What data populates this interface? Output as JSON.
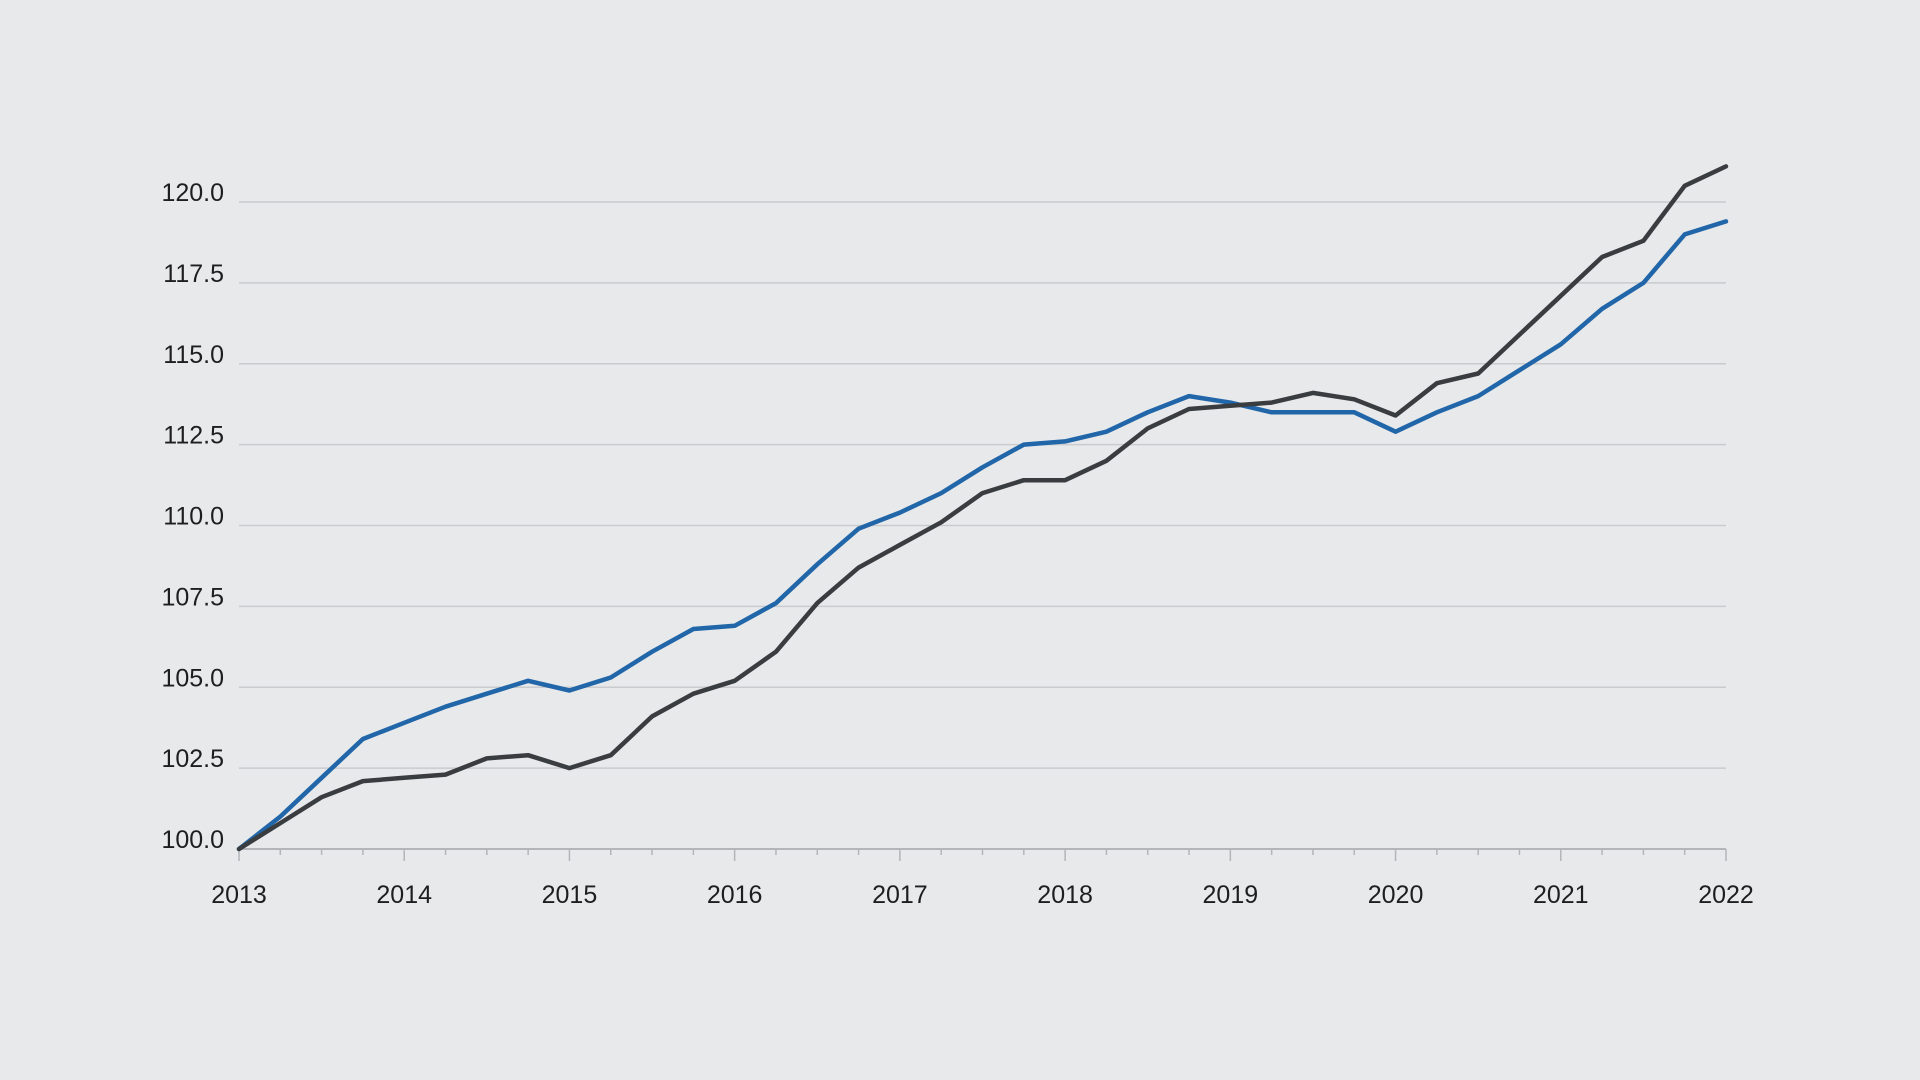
{
  "chart_data": {
    "type": "line",
    "title": "",
    "xlabel": "",
    "ylabel": "",
    "xlim": [
      2013,
      2022
    ],
    "ylim": [
      100,
      122
    ],
    "y_ticks": [
      100.0,
      102.5,
      105.0,
      107.5,
      110.0,
      112.5,
      115.0,
      117.5,
      120.0
    ],
    "y_tick_labels": [
      "100.0",
      "102.5",
      "105.0",
      "107.5",
      "110.0",
      "112.5",
      "115.0",
      "117.5",
      "120.0"
    ],
    "x_ticks": [
      2013,
      2014,
      2015,
      2016,
      2017,
      2018,
      2019,
      2020,
      2021,
      2022
    ],
    "x_tick_labels": [
      "2013",
      "2014",
      "2015",
      "2016",
      "2017",
      "2018",
      "2019",
      "2020",
      "2021",
      "2022"
    ],
    "grid": "horizontal",
    "legend": "none",
    "x": [
      2013.0,
      2013.25,
      2013.5,
      2013.75,
      2014.0,
      2014.25,
      2014.5,
      2014.75,
      2015.0,
      2015.25,
      2015.5,
      2015.75,
      2016.0,
      2016.25,
      2016.5,
      2016.75,
      2017.0,
      2017.25,
      2017.5,
      2017.75,
      2018.0,
      2018.25,
      2018.5,
      2018.75,
      2019.0,
      2019.25,
      2019.5,
      2019.75,
      2020.0,
      2020.25,
      2020.5,
      2020.75,
      2021.0,
      2021.25,
      2021.5,
      2021.75,
      2022.0
    ],
    "series": [
      {
        "color": "#2166a8",
        "values": [
          100.0,
          101.0,
          102.2,
          103.4,
          103.9,
          104.4,
          104.8,
          105.2,
          104.9,
          105.3,
          106.1,
          106.8,
          106.9,
          107.6,
          108.8,
          109.9,
          110.4,
          111.0,
          111.8,
          112.5,
          112.6,
          112.9,
          113.5,
          114.0,
          113.8,
          113.5,
          113.5,
          113.5,
          112.9,
          113.5,
          114.0,
          114.8,
          115.6,
          116.7,
          117.5,
          119.0,
          119.4
        ]
      },
      {
        "color": "#3a3d40",
        "values": [
          100.0,
          100.8,
          101.6,
          102.1,
          102.2,
          102.3,
          102.8,
          102.9,
          102.5,
          102.9,
          104.1,
          104.8,
          105.2,
          106.1,
          107.6,
          108.7,
          109.4,
          110.1,
          111.0,
          111.4,
          111.4,
          112.0,
          113.0,
          113.6,
          113.7,
          113.8,
          114.1,
          113.9,
          113.4,
          114.4,
          114.7,
          115.9,
          117.1,
          118.3,
          118.8,
          120.5,
          121.1
        ]
      }
    ]
  }
}
